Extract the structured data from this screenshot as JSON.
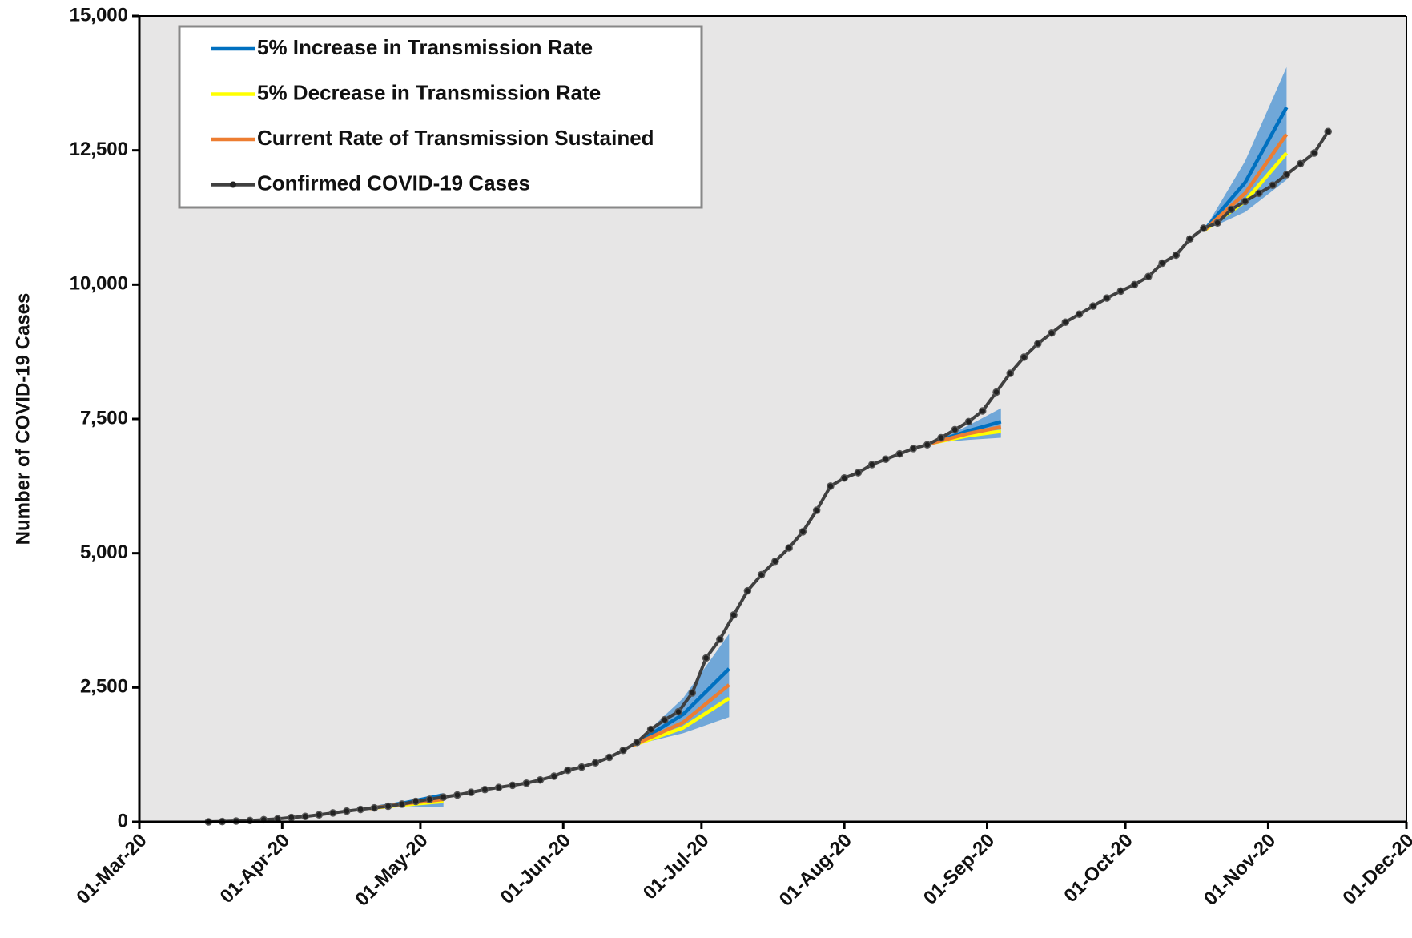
{
  "chart_data": {
    "type": "line",
    "y_label": "Number of COVID-19 Cases",
    "xlim": [
      "2020-03-01",
      "2020-12-01"
    ],
    "xticks": [
      {
        "value": "2020-03-01",
        "label": "01-Mar-20"
      },
      {
        "value": "2020-04-01",
        "label": "01-Apr-20"
      },
      {
        "value": "2020-05-01",
        "label": "01-May-20"
      },
      {
        "value": "2020-06-01",
        "label": "01-Jun-20"
      },
      {
        "value": "2020-07-01",
        "label": "01-Jul-20"
      },
      {
        "value": "2020-08-01",
        "label": "01-Aug-20"
      },
      {
        "value": "2020-09-01",
        "label": "01-Sep-20"
      },
      {
        "value": "2020-10-01",
        "label": "01-Oct-20"
      },
      {
        "value": "2020-11-01",
        "label": "01-Nov-20"
      },
      {
        "value": "2020-12-01",
        "label": "01-Dec-20"
      }
    ],
    "ylim": [
      0,
      15000
    ],
    "yticks": [
      0,
      {
        "value": 2500,
        "label": "2,500"
      },
      {
        "value": 5000,
        "label": "5,000"
      },
      {
        "value": 7500,
        "label": "7,500"
      },
      {
        "value": 10000,
        "label": "10,000"
      },
      {
        "value": 12500,
        "label": "12,500"
      },
      {
        "value": 15000,
        "label": "15,000"
      }
    ],
    "legend": "upper left",
    "background": "#e7e6e6",
    "band": {
      "color": "#5b9bd5",
      "x": [
        "2020-04-20",
        "2020-04-28",
        "2020-05-06",
        "2020-06-01",
        "2020-06-16",
        "2020-06-27",
        "2020-07-07",
        "2020-08-01",
        "2020-08-20",
        "2020-08-28",
        "2020-09-04",
        "2020-10-01",
        "2020-10-18",
        "2020-10-27",
        "2020-11-05"
      ],
      "lower": [
        250,
        290,
        270,
        null,
        1420,
        1650,
        1950,
        null,
        7050,
        7110,
        7150,
        null,
        11000,
        11350,
        11950
      ],
      "upper": [
        250,
        380,
        530,
        null,
        1420,
        2300,
        3500,
        null,
        7050,
        7380,
        7700,
        null,
        11000,
        12300,
        14050
      ]
    },
    "series": [
      {
        "name": "5% Increase in Transmission Rate",
        "color": "#0070c0",
        "x": [
          "2020-04-20",
          "2020-04-28",
          "2020-05-06",
          "2020-06-01",
          "2020-06-16",
          "2020-06-27",
          "2020-07-07",
          "2020-08-01",
          "2020-08-20",
          "2020-08-28",
          "2020-09-04",
          "2020-10-01",
          "2020-10-18",
          "2020-10-27",
          "2020-11-05"
        ],
        "values": [
          250,
          360,
          500,
          null,
          1420,
          2000,
          2850,
          null,
          7050,
          7280,
          7450,
          null,
          11000,
          11900,
          13300
        ]
      },
      {
        "name": "5% Decrease in Transmission Rate",
        "color": "#ffff00",
        "x": [
          "2020-04-20",
          "2020-04-28",
          "2020-05-06",
          "2020-06-01",
          "2020-06-16",
          "2020-06-27",
          "2020-07-07",
          "2020-08-01",
          "2020-08-20",
          "2020-08-28",
          "2020-09-04",
          "2020-10-01",
          "2020-10-18",
          "2020-10-27",
          "2020-11-05"
        ],
        "values": [
          250,
          320,
          380,
          null,
          1420,
          1750,
          2300,
          null,
          7050,
          7190,
          7270,
          null,
          11000,
          11550,
          12450
        ]
      },
      {
        "name": "Current Rate of Transmission Sustained",
        "color": "#ed7d31",
        "x": [
          "2020-04-20",
          "2020-04-28",
          "2020-05-06",
          "2020-06-01",
          "2020-06-16",
          "2020-06-27",
          "2020-07-07",
          "2020-08-01",
          "2020-08-20",
          "2020-08-28",
          "2020-09-04",
          "2020-10-01",
          "2020-10-18",
          "2020-10-27",
          "2020-11-05"
        ],
        "values": [
          250,
          340,
          420,
          null,
          1420,
          1850,
          2550,
          null,
          7050,
          7230,
          7350,
          null,
          11000,
          11700,
          12800
        ]
      },
      {
        "name": "Confirmed COVID-19 Cases",
        "color": "#404040",
        "marker": "circle",
        "x": [
          "2020-03-16",
          "2020-03-19",
          "2020-03-22",
          "2020-03-25",
          "2020-03-28",
          "2020-03-31",
          "2020-04-03",
          "2020-04-06",
          "2020-04-09",
          "2020-04-12",
          "2020-04-15",
          "2020-04-18",
          "2020-04-21",
          "2020-04-24",
          "2020-04-27",
          "2020-04-30",
          "2020-05-03",
          "2020-05-06",
          "2020-05-09",
          "2020-05-12",
          "2020-05-15",
          "2020-05-18",
          "2020-05-21",
          "2020-05-24",
          "2020-05-27",
          "2020-05-30",
          "2020-06-02",
          "2020-06-05",
          "2020-06-08",
          "2020-06-11",
          "2020-06-14",
          "2020-06-17",
          "2020-06-20",
          "2020-06-23",
          "2020-06-26",
          "2020-06-29",
          "2020-07-02",
          "2020-07-05",
          "2020-07-08",
          "2020-07-11",
          "2020-07-14",
          "2020-07-17",
          "2020-07-20",
          "2020-07-23",
          "2020-07-26",
          "2020-07-29",
          "2020-08-01",
          "2020-08-04",
          "2020-08-07",
          "2020-08-10",
          "2020-08-13",
          "2020-08-16",
          "2020-08-19",
          "2020-08-22",
          "2020-08-25",
          "2020-08-28",
          "2020-08-31",
          "2020-09-03",
          "2020-09-06",
          "2020-09-09",
          "2020-09-12",
          "2020-09-15",
          "2020-09-18",
          "2020-09-21",
          "2020-09-24",
          "2020-09-27",
          "2020-09-30",
          "2020-10-03",
          "2020-10-06",
          "2020-10-09",
          "2020-10-12",
          "2020-10-15",
          "2020-10-18",
          "2020-10-21",
          "2020-10-24",
          "2020-10-27",
          "2020-10-30",
          "2020-11-02",
          "2020-11-05",
          "2020-11-08",
          "2020-11-11",
          "2020-11-14"
        ],
        "values": [
          0,
          5,
          15,
          25,
          40,
          55,
          80,
          100,
          130,
          165,
          200,
          230,
          260,
          290,
          330,
          380,
          420,
          460,
          500,
          550,
          600,
          640,
          680,
          720,
          780,
          850,
          960,
          1020,
          1100,
          1200,
          1330,
          1480,
          1720,
          1900,
          2050,
          2400,
          3050,
          3400,
          3850,
          4300,
          4600,
          4850,
          5100,
          5400,
          5800,
          6250,
          6400,
          6500,
          6650,
          6750,
          6850,
          6950,
          7020,
          7150,
          7300,
          7450,
          7650,
          8000,
          8350,
          8650,
          8900,
          9100,
          9300,
          9450,
          9600,
          9750,
          9880,
          10000,
          10150,
          10400,
          10550,
          10850,
          11050,
          11150,
          11400,
          11550,
          11700,
          11850,
          12050,
          12250,
          12450,
          12850
        ]
      }
    ]
  }
}
